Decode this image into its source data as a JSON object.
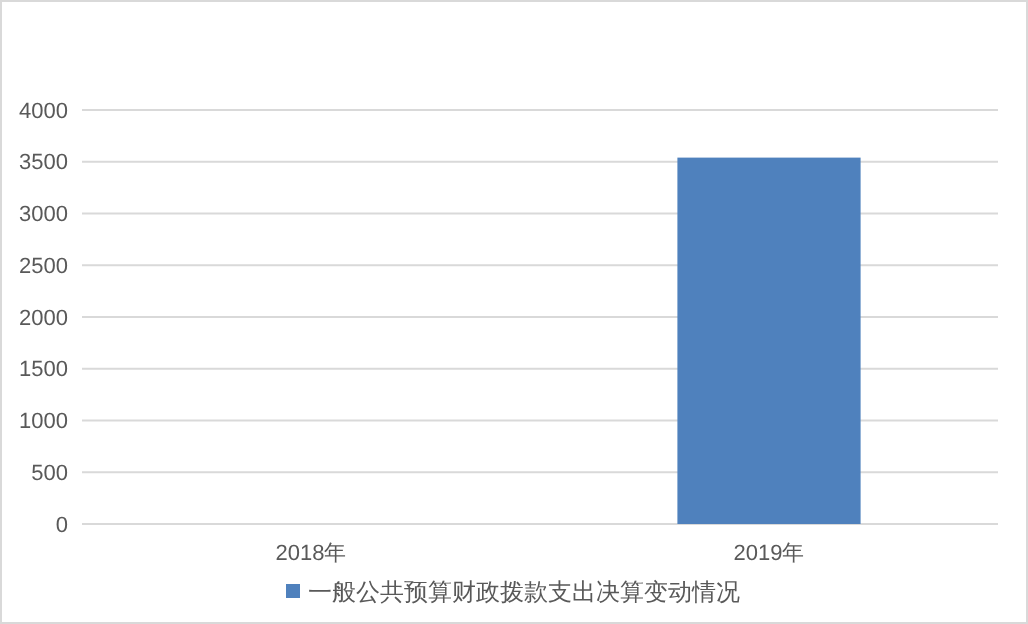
{
  "chart_data": {
    "type": "bar",
    "categories": [
      "2018年",
      "2019年"
    ],
    "series": [
      {
        "name": "一般公共预算财政拨款支出决算变动情况",
        "color": "#4f81bd",
        "values": [
          0,
          3540
        ]
      }
    ],
    "ylim": [
      0,
      4000
    ],
    "yticks": [
      0,
      500,
      1000,
      1500,
      2000,
      2500,
      3000,
      3500,
      4000
    ],
    "grid": "y",
    "legend": "bottom"
  }
}
